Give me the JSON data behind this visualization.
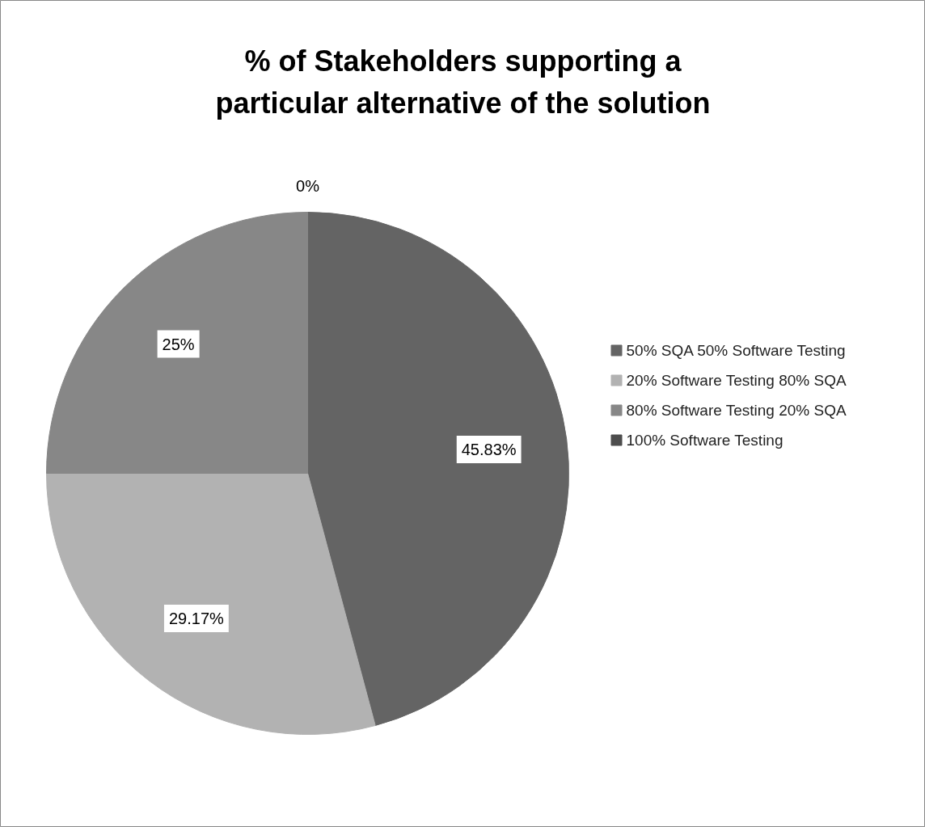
{
  "chart_data": {
    "type": "pie",
    "title": "% of Stakeholders supporting a particular alternative of the solution",
    "categories": [
      "50% SQA 50% Software Testing",
      "20% Software Testing 80% SQA",
      "80% Software Testing 20% SQA",
      "100% Software Testing"
    ],
    "values": [
      45.83,
      29.17,
      25,
      0
    ],
    "colors": [
      "#646464",
      "#b2b2b2",
      "#878787",
      "#4d4d4d"
    ],
    "value_labels": [
      "45.83%",
      "29.17%",
      "25%",
      "0%"
    ],
    "legend": "right"
  }
}
